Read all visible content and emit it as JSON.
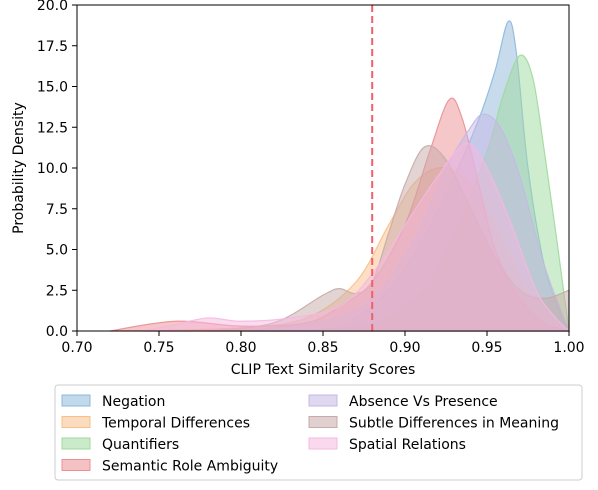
{
  "chart_data": {
    "type": "area",
    "xlabel": "CLIP Text Similarity Scores",
    "ylabel": "Probability Density",
    "xlim": [
      0.7,
      1.0
    ],
    "ylim": [
      0,
      20
    ],
    "x_ticks": [
      "0.70",
      "0.75",
      "0.80",
      "0.85",
      "0.90",
      "0.95",
      "1.00"
    ],
    "y_ticks": [
      "0.0",
      "2.5",
      "5.0",
      "7.5",
      "10.0",
      "12.5",
      "15.0",
      "17.5",
      "20.0"
    ],
    "threshold": {
      "x": 0.88,
      "color": "#f0606a",
      "style": "dashed"
    },
    "grid": false,
    "legend_position": "bottom",
    "series": [
      {
        "name": "Negation",
        "color": "#8fb8da",
        "points": [
          [
            0.8,
            0.0
          ],
          [
            0.85,
            0.1
          ],
          [
            0.87,
            0.8
          ],
          [
            0.89,
            2.5
          ],
          [
            0.91,
            5.5
          ],
          [
            0.93,
            9.5
          ],
          [
            0.945,
            13.0
          ],
          [
            0.955,
            16.0
          ],
          [
            0.963,
            19.0
          ],
          [
            0.968,
            17.0
          ],
          [
            0.975,
            10.0
          ],
          [
            0.985,
            4.0
          ],
          [
            0.995,
            1.0
          ],
          [
            1.0,
            0.0
          ]
        ]
      },
      {
        "name": "Temporal Differences",
        "color": "#f9c08a",
        "points": [
          [
            0.74,
            0.0
          ],
          [
            0.8,
            0.2
          ],
          [
            0.84,
            0.8
          ],
          [
            0.87,
            3.0
          ],
          [
            0.89,
            6.5
          ],
          [
            0.905,
            9.0
          ],
          [
            0.92,
            10.0
          ],
          [
            0.935,
            9.5
          ],
          [
            0.95,
            7.5
          ],
          [
            0.965,
            4.5
          ],
          [
            0.98,
            1.5
          ],
          [
            0.995,
            0.3
          ],
          [
            1.0,
            0.0
          ]
        ]
      },
      {
        "name": "Quantifiers",
        "color": "#9ed99e",
        "points": [
          [
            0.84,
            0.0
          ],
          [
            0.88,
            0.5
          ],
          [
            0.91,
            2.5
          ],
          [
            0.93,
            6.0
          ],
          [
            0.95,
            11.0
          ],
          [
            0.96,
            14.5
          ],
          [
            0.97,
            16.9
          ],
          [
            0.978,
            15.5
          ],
          [
            0.985,
            11.0
          ],
          [
            0.992,
            6.0
          ],
          [
            1.0,
            0.0
          ]
        ]
      },
      {
        "name": "Semantic Role Ambiguity",
        "color": "#ec8f93",
        "points": [
          [
            0.72,
            0.0
          ],
          [
            0.76,
            0.6
          ],
          [
            0.8,
            0.3
          ],
          [
            0.84,
            0.5
          ],
          [
            0.86,
            1.5
          ],
          [
            0.88,
            3.0
          ],
          [
            0.9,
            6.5
          ],
          [
            0.915,
            11.0
          ],
          [
            0.927,
            14.2
          ],
          [
            0.935,
            13.0
          ],
          [
            0.945,
            9.0
          ],
          [
            0.955,
            5.0
          ],
          [
            0.97,
            2.0
          ],
          [
            0.985,
            0.5
          ],
          [
            1.0,
            0.0
          ]
        ]
      },
      {
        "name": "Absence Vs Presence",
        "color": "#c5b8e6",
        "points": [
          [
            0.8,
            0.0
          ],
          [
            0.85,
            0.6
          ],
          [
            0.88,
            2.0
          ],
          [
            0.905,
            5.5
          ],
          [
            0.925,
            10.0
          ],
          [
            0.94,
            12.5
          ],
          [
            0.948,
            13.3
          ],
          [
            0.958,
            12.5
          ],
          [
            0.97,
            9.5
          ],
          [
            0.985,
            4.0
          ],
          [
            1.0,
            0.0
          ]
        ]
      },
      {
        "name": "Subtle Differences in Meaning",
        "color": "#c8aaaa",
        "points": [
          [
            0.78,
            0.0
          ],
          [
            0.82,
            0.5
          ],
          [
            0.85,
            2.2
          ],
          [
            0.86,
            2.6
          ],
          [
            0.87,
            2.3
          ],
          [
            0.88,
            3.0
          ],
          [
            0.89,
            6.0
          ],
          [
            0.9,
            9.0
          ],
          [
            0.912,
            11.3
          ],
          [
            0.925,
            10.5
          ],
          [
            0.94,
            7.5
          ],
          [
            0.955,
            4.5
          ],
          [
            0.97,
            2.5
          ],
          [
            0.985,
            2.0
          ],
          [
            1.0,
            2.5
          ]
        ]
      },
      {
        "name": "Spatial Relations",
        "color": "#f5b8e0",
        "points": [
          [
            0.74,
            0.0
          ],
          [
            0.76,
            0.4
          ],
          [
            0.78,
            0.8
          ],
          [
            0.8,
            0.6
          ],
          [
            0.83,
            0.8
          ],
          [
            0.86,
            1.5
          ],
          [
            0.88,
            3.5
          ],
          [
            0.9,
            6.5
          ],
          [
            0.92,
            9.5
          ],
          [
            0.937,
            11.5
          ],
          [
            0.95,
            10.0
          ],
          [
            0.965,
            6.5
          ],
          [
            0.98,
            2.5
          ],
          [
            0.992,
            0.8
          ],
          [
            1.0,
            0.0
          ]
        ]
      }
    ]
  },
  "legend": {
    "columns": [
      [
        "Negation",
        "Temporal Differences",
        "Quantifiers",
        "Semantic Role Ambiguity"
      ],
      [
        "Absence Vs Presence",
        "Subtle Differences in Meaning",
        "Spatial Relations"
      ]
    ]
  }
}
